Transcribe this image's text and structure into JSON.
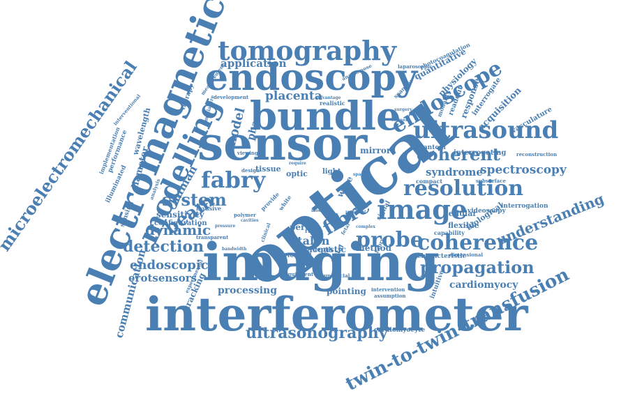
{
  "word_cloud": {
    "color": "#4a7fb3",
    "words": [
      {
        "text": "interferometer"
      },
      {
        "text": "imaging"
      },
      {
        "text": "optical"
      },
      {
        "text": "sensor"
      },
      {
        "text": "bundle"
      },
      {
        "text": "endoscopy"
      },
      {
        "text": "electromagnetic"
      },
      {
        "text": "tomography"
      },
      {
        "text": "modelling"
      },
      {
        "text": "microelectromechanical"
      },
      {
        "text": "twin-to-twin-transfusion"
      },
      {
        "text": "ultrasound"
      },
      {
        "text": "endoscope"
      },
      {
        "text": "image"
      },
      {
        "text": "resolution"
      },
      {
        "text": "coherence"
      },
      {
        "text": "propagation"
      },
      {
        "text": "fabry"
      },
      {
        "text": "probe"
      },
      {
        "text": "fibre"
      },
      {
        "text": "coherent"
      },
      {
        "text": "beam"
      },
      {
        "text": "system"
      },
      {
        "text": "detection"
      },
      {
        "text": "ultrasonography"
      },
      {
        "text": "understanding"
      },
      {
        "text": "spectroscopy"
      },
      {
        "text": "syndrome"
      },
      {
        "text": "dynamic"
      },
      {
        "text": "endoscopic"
      },
      {
        "text": "application"
      },
      {
        "text": "placenta"
      },
      {
        "text": "human"
      },
      {
        "text": "model"
      },
      {
        "text": "phase"
      },
      {
        "text": "communication"
      },
      {
        "text": "erotsensors"
      },
      {
        "text": "sensitivity"
      },
      {
        "text": "processing"
      },
      {
        "text": "cardiomyocy"
      },
      {
        "text": "cardiomyocyte"
      },
      {
        "text": "étalon"
      },
      {
        "text": "acoustic"
      },
      {
        "text": "pointing"
      },
      {
        "text": "method"
      },
      {
        "text": "perot"
      },
      {
        "text": "wave"
      },
      {
        "text": "mirror"
      },
      {
        "text": "tissue"
      },
      {
        "text": "optic"
      },
      {
        "text": "light"
      },
      {
        "text": "cellular"
      },
      {
        "text": "flexible"
      },
      {
        "text": "biological"
      },
      {
        "text": "videoscopy"
      },
      {
        "text": "vasculature"
      },
      {
        "text": "acquisition"
      },
      {
        "text": "interrogate"
      },
      {
        "text": "response"
      },
      {
        "text": "readout"
      },
      {
        "text": "physiology"
      },
      {
        "text": "quantitative"
      },
      {
        "text": "characteristic"
      },
      {
        "text": "tracking"
      },
      {
        "text": "configuration"
      },
      {
        "text": "interrogating"
      },
      {
        "text": "interrogation"
      },
      {
        "text": "capability"
      },
      {
        "text": "phantom"
      },
      {
        "text": "diameter"
      },
      {
        "text": "wavelength"
      },
      {
        "text": "illuminated"
      },
      {
        "text": "sensing"
      },
      {
        "text": "performance"
      },
      {
        "text": "implementation"
      },
      {
        "text": "therapy"
      },
      {
        "text": "invasive"
      },
      {
        "text": "depth"
      },
      {
        "text": "signal"
      },
      {
        "text": "focused"
      },
      {
        "text": "distal"
      },
      {
        "text": "range"
      },
      {
        "text": "intervention"
      },
      {
        "text": "assumption"
      },
      {
        "text": "realistic"
      },
      {
        "text": "scanner"
      },
      {
        "text": "laparoscopic"
      },
      {
        "text": "photocoagulation"
      },
      {
        "text": "anastomose"
      },
      {
        "text": "measurement"
      },
      {
        "text": "development"
      },
      {
        "text": "interventional"
      },
      {
        "text": "miniature"
      },
      {
        "text": "viewing"
      },
      {
        "text": "design"
      },
      {
        "text": "polymer"
      },
      {
        "text": "cavities"
      },
      {
        "text": "transparent"
      },
      {
        "text": "bandwidth"
      },
      {
        "text": "analysis"
      },
      {
        "text": "experimental"
      },
      {
        "text": "equivalent"
      },
      {
        "text": "superficial"
      },
      {
        "text": "compact"
      },
      {
        "text": "subsurface"
      },
      {
        "text": "reconstruction"
      },
      {
        "text": "dimensional"
      },
      {
        "text": "intuitive"
      },
      {
        "text": "modality"
      },
      {
        "text": "provide"
      },
      {
        "text": "white"
      },
      {
        "text": "clinical"
      },
      {
        "text": "surgery"
      },
      {
        "text": "element"
      },
      {
        "text": "space"
      },
      {
        "text": "resonant"
      },
      {
        "text": "complex"
      },
      {
        "text": "advantage"
      },
      {
        "text": "fetal"
      },
      {
        "text": "mode"
      },
      {
        "text": "require"
      },
      {
        "text": "pressure"
      },
      {
        "text": "fabry"
      }
    ]
  }
}
